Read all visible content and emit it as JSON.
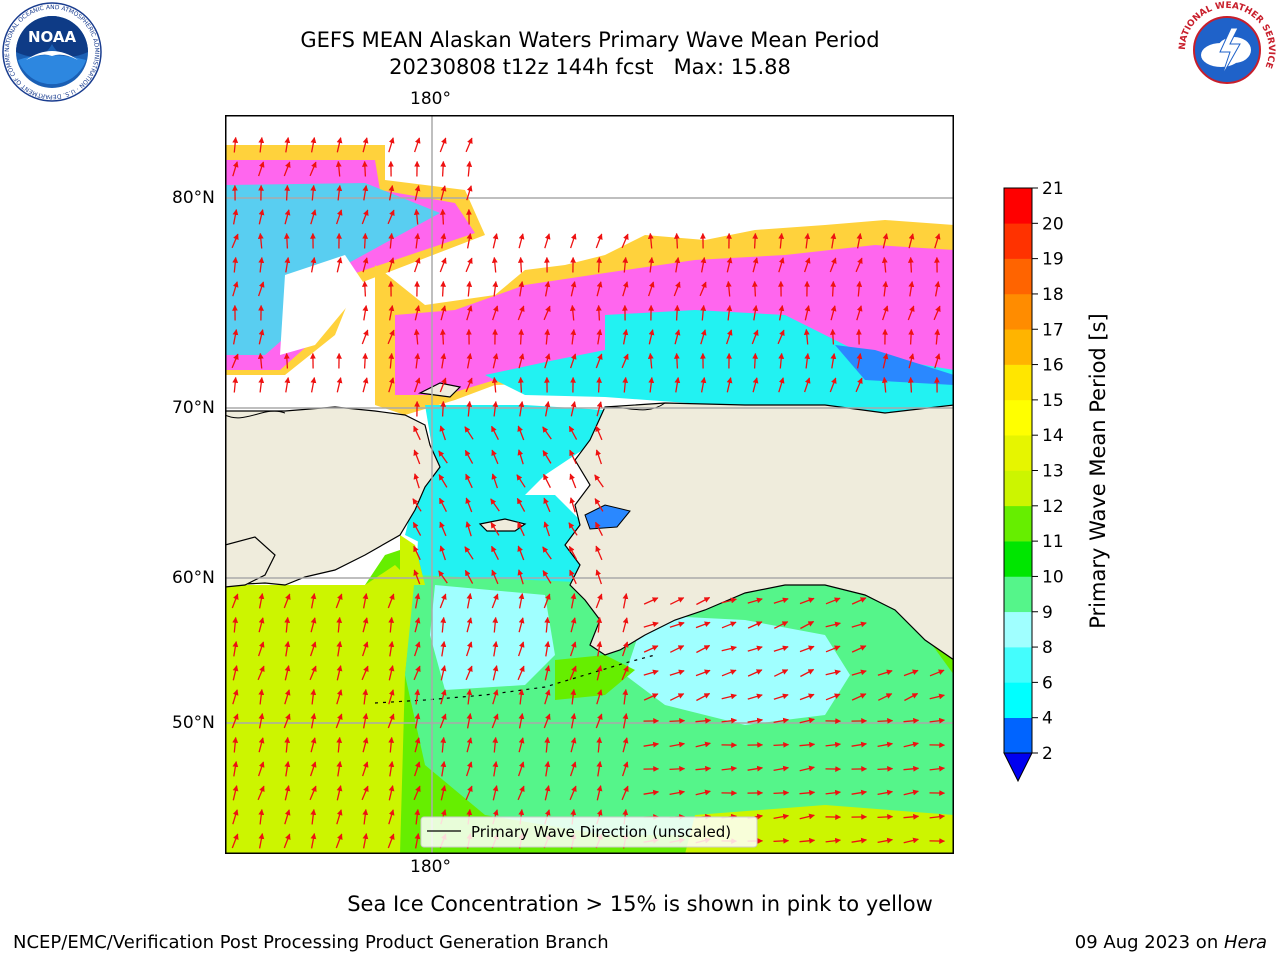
{
  "header": {
    "title_line1": "GEFS MEAN Alaskan Waters Primary Wave Mean Period",
    "title_line2": "20230808 t12z 144h fcst   Max: 15.88"
  },
  "logos": {
    "noaa": {
      "text": "NOAA",
      "ring_text": "NATIONAL OCEANIC AND ATMOSPHERIC ADMINISTRATION · U.S. DEPARTMENT OF COMMERCE"
    },
    "nws": {
      "ring_text": "NATIONAL WEATHER SERVICE"
    }
  },
  "map": {
    "lon_label_top": "180°",
    "lon_label_bottom": "180°",
    "lat_labels": [
      "80°N",
      "70°N",
      "60°N",
      "50°N"
    ],
    "legend": "Primary Wave Direction (unscaled)",
    "colors": {
      "land": "#efecdc",
      "ice_pink": "#ff66ee",
      "ice_yellow": "#ffd23c",
      "ice_orange": "#ffb04a",
      "arrow": "#ee1111",
      "grid": "#aaaaaa"
    }
  },
  "colorbar": {
    "label": "Primary Wave Mean Period [s]",
    "ticks": [
      "2",
      "4",
      "6",
      "8",
      "9",
      "10",
      "11",
      "12",
      "13",
      "14",
      "15",
      "16",
      "17",
      "18",
      "19",
      "20",
      "21"
    ],
    "colors": [
      "#0064ff",
      "#00ffff",
      "#44fdfd",
      "#a0ffff",
      "#55f58a",
      "#00e600",
      "#66ee00",
      "#ccf500",
      "#e6f500",
      "#ffff00",
      "#ffe600",
      "#ffb400",
      "#ff8c00",
      "#ff6400",
      "#ff3200",
      "#ff0000"
    ],
    "extend_color": "#0000f0"
  },
  "notes": {
    "sea_ice": "Sea Ice Concentration > 15% is shown in pink to yellow"
  },
  "footer": {
    "left": "NCEP/EMC/Verification Post Processing Product Generation Branch",
    "date": "09 Aug 2023 on ",
    "host": "Hera"
  }
}
